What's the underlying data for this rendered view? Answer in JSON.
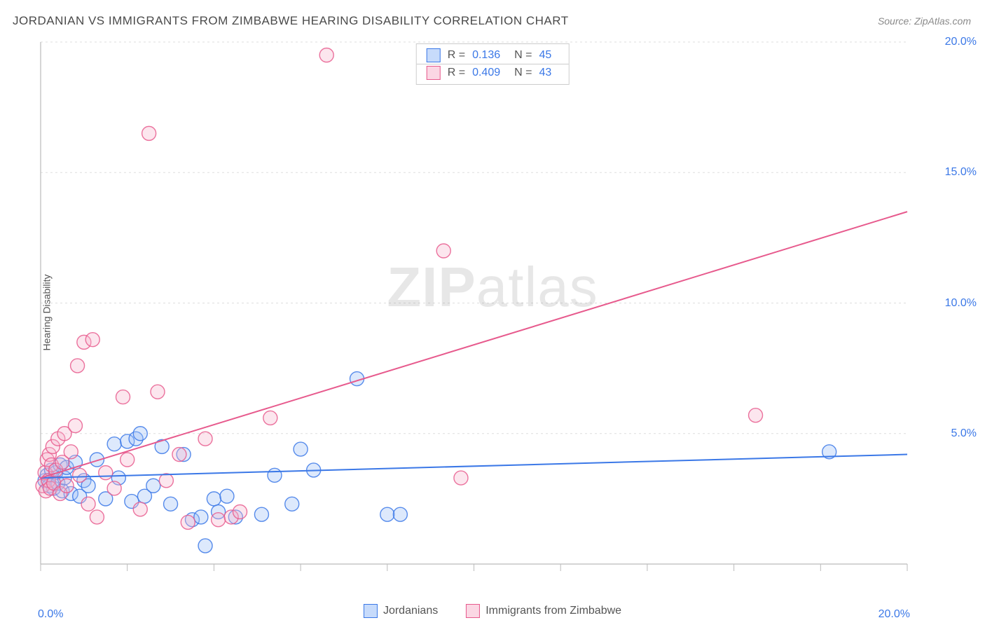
{
  "title": "JORDANIAN VS IMMIGRANTS FROM ZIMBABWE HEARING DISABILITY CORRELATION CHART",
  "source": "Source: ZipAtlas.com",
  "y_axis_label": "Hearing Disability",
  "watermark_bold": "ZIP",
  "watermark_light": "atlas",
  "chart": {
    "type": "scatter",
    "xlim": [
      0,
      20
    ],
    "ylim": [
      0,
      20
    ],
    "x_ticks": [
      0,
      2,
      4,
      6,
      8,
      10,
      12,
      14,
      16,
      18,
      20
    ],
    "x_tick_labels": {
      "0": "0.0%",
      "20": "20.0%"
    },
    "y_ticks": [
      5,
      10,
      15,
      20
    ],
    "y_tick_labels": {
      "5": "5.0%",
      "10": "10.0%",
      "15": "15.0%",
      "20": "20.0%"
    },
    "grid_color": "#dddddd",
    "axis_color": "#bbbbbb",
    "background_color": "#ffffff",
    "marker_radius": 10,
    "marker_fill_opacity": 0.35,
    "marker_stroke_width": 1.4,
    "line_width": 2
  },
  "series": [
    {
      "name": "Jordanians",
      "color_stroke": "#3b78e7",
      "color_fill": "#9fc0f5",
      "swatch_fill": "#c7dbfb",
      "r_value": "0.136",
      "n_value": "45",
      "regression": {
        "x1": 0,
        "y1": 3.3,
        "x2": 20,
        "y2": 4.2
      },
      "points": [
        [
          0.1,
          3.2
        ],
        [
          0.15,
          3.4
        ],
        [
          0.2,
          3.0
        ],
        [
          0.25,
          3.6
        ],
        [
          0.3,
          2.9
        ],
        [
          0.35,
          3.5
        ],
        [
          0.4,
          3.1
        ],
        [
          0.45,
          3.8
        ],
        [
          0.5,
          2.8
        ],
        [
          0.55,
          3.3
        ],
        [
          0.6,
          3.7
        ],
        [
          0.7,
          2.7
        ],
        [
          0.8,
          3.9
        ],
        [
          0.9,
          2.6
        ],
        [
          1.0,
          3.2
        ],
        [
          1.1,
          3.0
        ],
        [
          1.3,
          4.0
        ],
        [
          1.5,
          2.5
        ],
        [
          1.7,
          4.6
        ],
        [
          1.8,
          3.3
        ],
        [
          2.0,
          4.7
        ],
        [
          2.1,
          2.4
        ],
        [
          2.2,
          4.8
        ],
        [
          2.3,
          5.0
        ],
        [
          2.4,
          2.6
        ],
        [
          2.6,
          3.0
        ],
        [
          2.8,
          4.5
        ],
        [
          3.0,
          2.3
        ],
        [
          3.3,
          4.2
        ],
        [
          3.5,
          1.7
        ],
        [
          3.7,
          1.8
        ],
        [
          3.8,
          0.7
        ],
        [
          4.0,
          2.5
        ],
        [
          4.1,
          2.0
        ],
        [
          4.3,
          2.6
        ],
        [
          4.5,
          1.8
        ],
        [
          5.1,
          1.9
        ],
        [
          5.4,
          3.4
        ],
        [
          5.8,
          2.3
        ],
        [
          6.0,
          4.4
        ],
        [
          6.3,
          3.6
        ],
        [
          7.3,
          7.1
        ],
        [
          8.0,
          1.9
        ],
        [
          8.3,
          1.9
        ],
        [
          18.2,
          4.3
        ]
      ]
    },
    {
      "name": "Immigrants from Zimbabwe",
      "color_stroke": "#e75a8d",
      "color_fill": "#f6b7ce",
      "swatch_fill": "#fbd7e4",
      "r_value": "0.409",
      "n_value": "43",
      "regression": {
        "x1": 0,
        "y1": 3.3,
        "x2": 20,
        "y2": 13.5
      },
      "points": [
        [
          0.05,
          3.0
        ],
        [
          0.1,
          3.5
        ],
        [
          0.12,
          2.8
        ],
        [
          0.15,
          4.0
        ],
        [
          0.18,
          3.2
        ],
        [
          0.2,
          4.2
        ],
        [
          0.22,
          2.9
        ],
        [
          0.25,
          3.8
        ],
        [
          0.28,
          4.5
        ],
        [
          0.3,
          3.1
        ],
        [
          0.35,
          3.6
        ],
        [
          0.4,
          4.8
        ],
        [
          0.45,
          2.7
        ],
        [
          0.5,
          3.9
        ],
        [
          0.55,
          5.0
        ],
        [
          0.6,
          3.0
        ],
        [
          0.7,
          4.3
        ],
        [
          0.8,
          5.3
        ],
        [
          0.85,
          7.6
        ],
        [
          0.9,
          3.4
        ],
        [
          1.0,
          8.5
        ],
        [
          1.1,
          2.3
        ],
        [
          1.2,
          8.6
        ],
        [
          1.3,
          1.8
        ],
        [
          1.5,
          3.5
        ],
        [
          1.7,
          2.9
        ],
        [
          1.9,
          6.4
        ],
        [
          2.0,
          4.0
        ],
        [
          2.3,
          2.1
        ],
        [
          2.5,
          16.5
        ],
        [
          2.7,
          6.6
        ],
        [
          2.9,
          3.2
        ],
        [
          3.2,
          4.2
        ],
        [
          3.4,
          1.6
        ],
        [
          3.8,
          4.8
        ],
        [
          4.1,
          1.7
        ],
        [
          4.4,
          1.8
        ],
        [
          4.6,
          2.0
        ],
        [
          5.3,
          5.6
        ],
        [
          6.6,
          19.5
        ],
        [
          9.3,
          12.0
        ],
        [
          9.7,
          3.3
        ],
        [
          16.5,
          5.7
        ]
      ]
    }
  ],
  "bottom_legend": [
    {
      "label": "Jordanians",
      "swatch_fill": "#c7dbfb",
      "swatch_stroke": "#3b78e7"
    },
    {
      "label": "Immigrants from Zimbabwe",
      "swatch_fill": "#fbd7e4",
      "swatch_stroke": "#e75a8d"
    }
  ],
  "r_legend_header": {
    "r": "R =",
    "n": "N ="
  }
}
